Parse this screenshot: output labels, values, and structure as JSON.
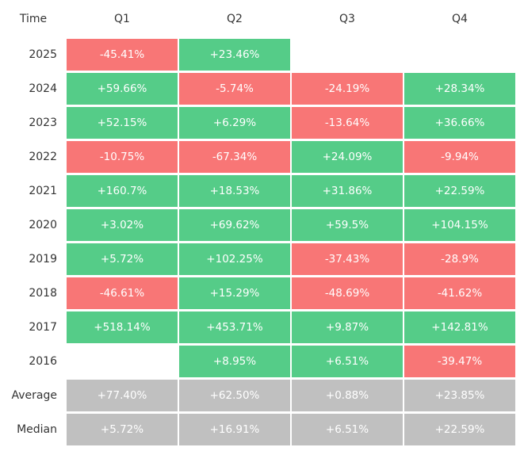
{
  "chart_data": {
    "type": "table",
    "corner_label": "Time",
    "columns": [
      "Q1",
      "Q2",
      "Q3",
      "Q4"
    ],
    "rows": [
      {
        "label": "2025",
        "values": [
          "-45.41%",
          "+23.46%",
          null,
          null
        ]
      },
      {
        "label": "2024",
        "values": [
          "+59.66%",
          "-5.74%",
          "-24.19%",
          "+28.34%"
        ]
      },
      {
        "label": "2023",
        "values": [
          "+52.15%",
          "+6.29%",
          "-13.64%",
          "+36.66%"
        ]
      },
      {
        "label": "2022",
        "values": [
          "-10.75%",
          "-67.34%",
          "+24.09%",
          "-9.94%"
        ]
      },
      {
        "label": "2021",
        "values": [
          "+160.7%",
          "+18.53%",
          "+31.86%",
          "+22.59%"
        ]
      },
      {
        "label": "2020",
        "values": [
          "+3.02%",
          "+69.62%",
          "+59.5%",
          "+104.15%"
        ]
      },
      {
        "label": "2019",
        "values": [
          "+5.72%",
          "+102.25%",
          "-37.43%",
          "-28.9%"
        ]
      },
      {
        "label": "2018",
        "values": [
          "-46.61%",
          "+15.29%",
          "-48.69%",
          "-41.62%"
        ]
      },
      {
        "label": "2017",
        "values": [
          "+518.14%",
          "+453.71%",
          "+9.87%",
          "+142.81%"
        ]
      },
      {
        "label": "2016",
        "values": [
          null,
          "+8.95%",
          "+6.51%",
          "-39.47%"
        ]
      }
    ],
    "summary_rows": [
      {
        "label": "Average",
        "values": [
          "+77.40%",
          "+62.50%",
          "+0.88%",
          "+23.85%"
        ]
      },
      {
        "label": "Median",
        "values": [
          "+5.72%",
          "+16.91%",
          "+6.51%",
          "+22.59%"
        ]
      }
    ],
    "colors": {
      "positive": "#55cc88",
      "negative": "#f87676",
      "summary": "#c0c0c0"
    }
  }
}
